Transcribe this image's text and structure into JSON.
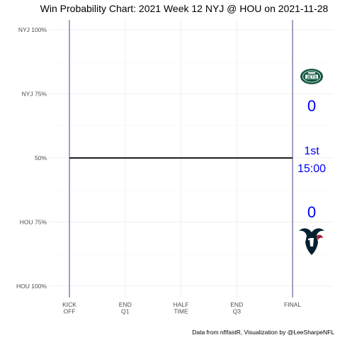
{
  "chart_data": {
    "type": "line",
    "title": "Win Probability Chart: 2021 Week 12 NYJ @ HOU on 2021-11-28",
    "caption": "Data from nflfastR, Visualization by @LeeSharpeNFL",
    "y_ticks": [
      {
        "value": 1.0,
        "label": "NYJ 100%"
      },
      {
        "value": 0.75,
        "label": "NYJ 75%"
      },
      {
        "value": 0.5,
        "label": "50%"
      },
      {
        "value": 0.25,
        "label": "HOU 75%"
      },
      {
        "value": 0.0,
        "label": "HOU 100%"
      }
    ],
    "x_ticks": [
      {
        "value": 0,
        "label": [
          "KICK",
          "OFF"
        ]
      },
      {
        "value": 900,
        "label": [
          "END",
          "Q1"
        ]
      },
      {
        "value": 1800,
        "label": [
          "HALF",
          "TIME"
        ]
      },
      {
        "value": 2700,
        "label": [
          "END",
          "Q3"
        ]
      },
      {
        "value": 3600,
        "label": [
          "FINAL"
        ]
      }
    ],
    "xlim": [
      0,
      3600
    ],
    "ylim": [
      0,
      1
    ],
    "grid": true,
    "series": [
      {
        "x": [
          0,
          3600
        ],
        "y": [
          0.5,
          0.5
        ],
        "color": "#000000"
      }
    ],
    "vlines": [
      0,
      3600
    ],
    "vline_color": "#191970",
    "away_team": {
      "abbr": "NYJ",
      "score": "0",
      "logo": "jets-logo",
      "color": "#125740"
    },
    "home_team": {
      "abbr": "HOU",
      "score": "0",
      "logo": "texans-logo",
      "color": "#03202F",
      "accent": "#A71930"
    },
    "game_clock": {
      "quarter": "1st",
      "time": "15:00"
    },
    "annotation_color": "#0000ee"
  }
}
